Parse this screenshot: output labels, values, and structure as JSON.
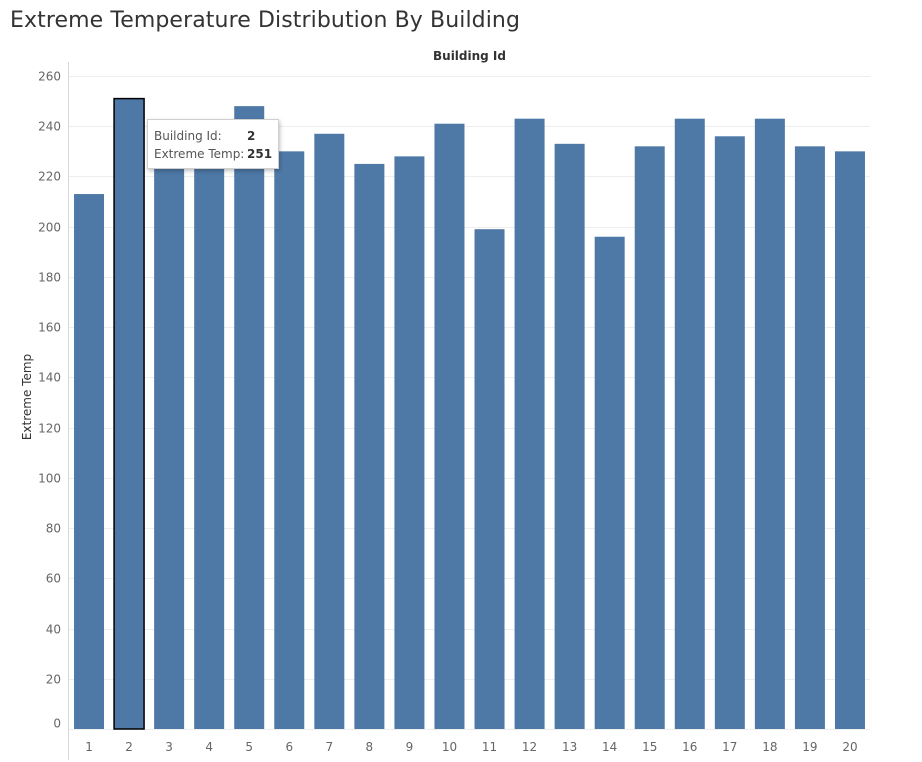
{
  "chart_data": {
    "type": "bar",
    "title": "Extreme Temperature Distribution By Building",
    "xlabel": "Building Id",
    "ylabel": "Extreme Temp",
    "categories": [
      "1",
      "2",
      "3",
      "4",
      "5",
      "6",
      "7",
      "8",
      "9",
      "10",
      "11",
      "12",
      "13",
      "14",
      "15",
      "16",
      "17",
      "18",
      "19",
      "20"
    ],
    "values": [
      213,
      251,
      226,
      226,
      248,
      230,
      237,
      225,
      228,
      241,
      199,
      243,
      233,
      196,
      232,
      243,
      236,
      243,
      232,
      230
    ],
    "ylim": [
      0,
      260
    ],
    "yticks": [
      "0",
      "20",
      "40",
      "60",
      "80",
      "100",
      "120",
      "140",
      "160",
      "180",
      "200",
      "220",
      "240",
      "260"
    ],
    "xlabel_position": "top",
    "highlighted_category": "2",
    "colors": {
      "bar": "#4e79a7",
      "gridline": "#eeeeee",
      "tick_text": "#666666",
      "axis_label": "#333333",
      "highlight_outline": "#000000"
    },
    "tooltip": {
      "building_label": "Building Id:",
      "building_value": "2",
      "temp_label": "Extreme Temp:",
      "temp_value": "251"
    }
  }
}
